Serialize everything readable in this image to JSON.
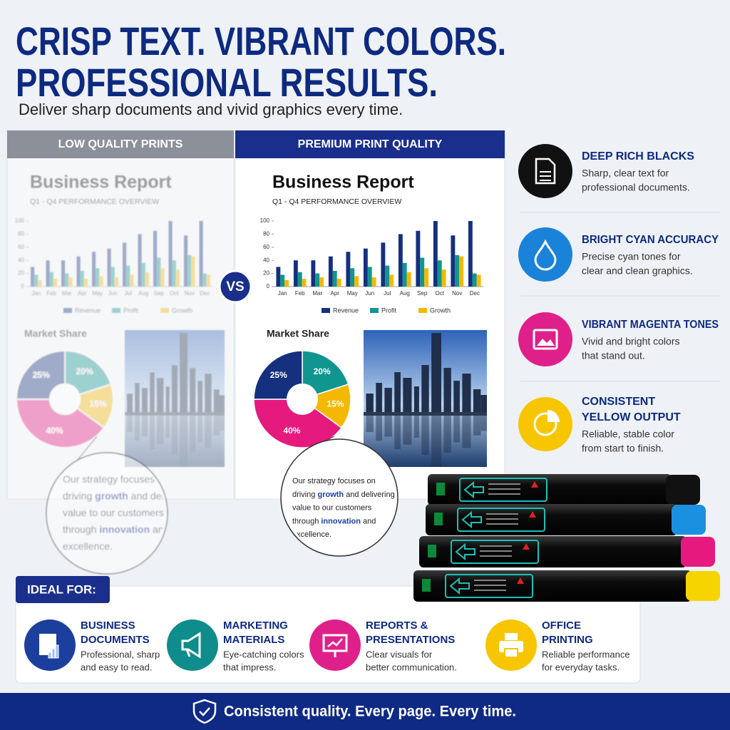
{
  "header": {
    "title": [
      "CRISP TEXT. VIBRANT COLORS.",
      "PROFESSIONAL RESULTS."
    ],
    "subtitle": "Deliver sharp documents and vivid graphics every time."
  },
  "comparison": {
    "low_label": "LOW QUALITY PRINTS",
    "premium_label": "PREMIUM PRINT QUALITY",
    "vs": "VS"
  },
  "report": {
    "title": "Business Report",
    "subtitle": "Q1 - Q4 PERFORMANCE OVERVIEW",
    "quote": [
      [
        {
          "text": "Our strategy focuses on"
        }
      ],
      [
        {
          "text": "driving "
        },
        {
          "text": "growth",
          "emphasis": true
        },
        {
          "text": " and delivering"
        }
      ],
      [
        {
          "text": "value to our customers"
        }
      ],
      [
        {
          "text": "through "
        },
        {
          "text": "innovation",
          "emphasis": true
        },
        {
          "text": " and"
        }
      ],
      [
        {
          "text": "excellence."
        }
      ]
    ]
  },
  "chart_data": [
    {
      "type": "bar",
      "categories": [
        "Jan",
        "Feb",
        "Mar",
        "Apr",
        "May",
        "Jun",
        "Jul",
        "Aug",
        "Sep",
        "Oct",
        "Nov",
        "Dec"
      ],
      "ylim": [
        0,
        100
      ],
      "yticks": [
        0,
        20,
        40,
        60,
        80,
        100
      ],
      "series": [
        {
          "name": "Revenue",
          "color": "#15307f",
          "values": [
            30,
            40,
            40,
            46,
            53,
            58,
            67,
            80,
            85,
            100,
            78,
            100
          ]
        },
        {
          "name": "Profit",
          "color": "#11968f",
          "values": [
            18,
            22,
            20,
            24,
            28,
            30,
            32,
            36,
            44,
            40,
            48,
            20
          ]
        },
        {
          "name": "Growth",
          "color": "#f5b800",
          "values": [
            10,
            12,
            14,
            12,
            16,
            14,
            18,
            22,
            28,
            26,
            46,
            18
          ]
        }
      ]
    },
    {
      "type": "pie",
      "title": "Market Share",
      "values": [
        20,
        15,
        40,
        25
      ],
      "value_labels": [
        "20%",
        "15%",
        "40%",
        "25%"
      ],
      "colors": [
        "#11968f",
        "#f5b800",
        "#e6197f",
        "#15307f"
      ]
    }
  ],
  "features": [
    {
      "title": [
        "DEEP RICH BLACKS"
      ],
      "text": [
        "Sharp, clear text for",
        "professional documents."
      ],
      "color": "#111111",
      "icon": "document"
    },
    {
      "title": [
        "BRIGHT CYAN ACCURACY"
      ],
      "text": [
        "Precise cyan tones for",
        "clear and clean graphics."
      ],
      "color": "#1a82d8",
      "icon": "drop"
    },
    {
      "title": [
        "VIBRANT MAGENTA TONES"
      ],
      "text": [
        "Vivid and bright colors",
        "that stand out."
      ],
      "color": "#e0208a",
      "icon": "image"
    },
    {
      "title": [
        "CONSISTENT",
        "YELLOW OUTPUT"
      ],
      "text": [
        "Reliable, stable color",
        "from start to finish."
      ],
      "color": "#f7c600",
      "icon": "pie"
    }
  ],
  "ideal_for": {
    "label": "IDEAL FOR:",
    "items": [
      {
        "title": [
          "BUSINESS",
          "DOCUMENTS"
        ],
        "text": [
          "Professional, sharp",
          "and easy to read."
        ],
        "color": "#1c3f9e",
        "icon": "report"
      },
      {
        "title": [
          "MARKETING",
          "MATERIALS"
        ],
        "text": [
          "Eye-catching colors",
          "that impress."
        ],
        "color": "#0f8c8c",
        "icon": "megaphone"
      },
      {
        "title": [
          "REPORTS &",
          "PRESENTATIONS"
        ],
        "text": [
          "Clear visuals for",
          "better communication."
        ],
        "color": "#e0208a",
        "icon": "presentation"
      },
      {
        "title": [
          "OFFICE",
          "PRINTING"
        ],
        "text": [
          "Reliable performance",
          "for everyday tasks."
        ],
        "color": "#f7c600",
        "icon": "printer"
      }
    ]
  },
  "footer": {
    "text": "Consistent quality. Every page. Every time."
  }
}
